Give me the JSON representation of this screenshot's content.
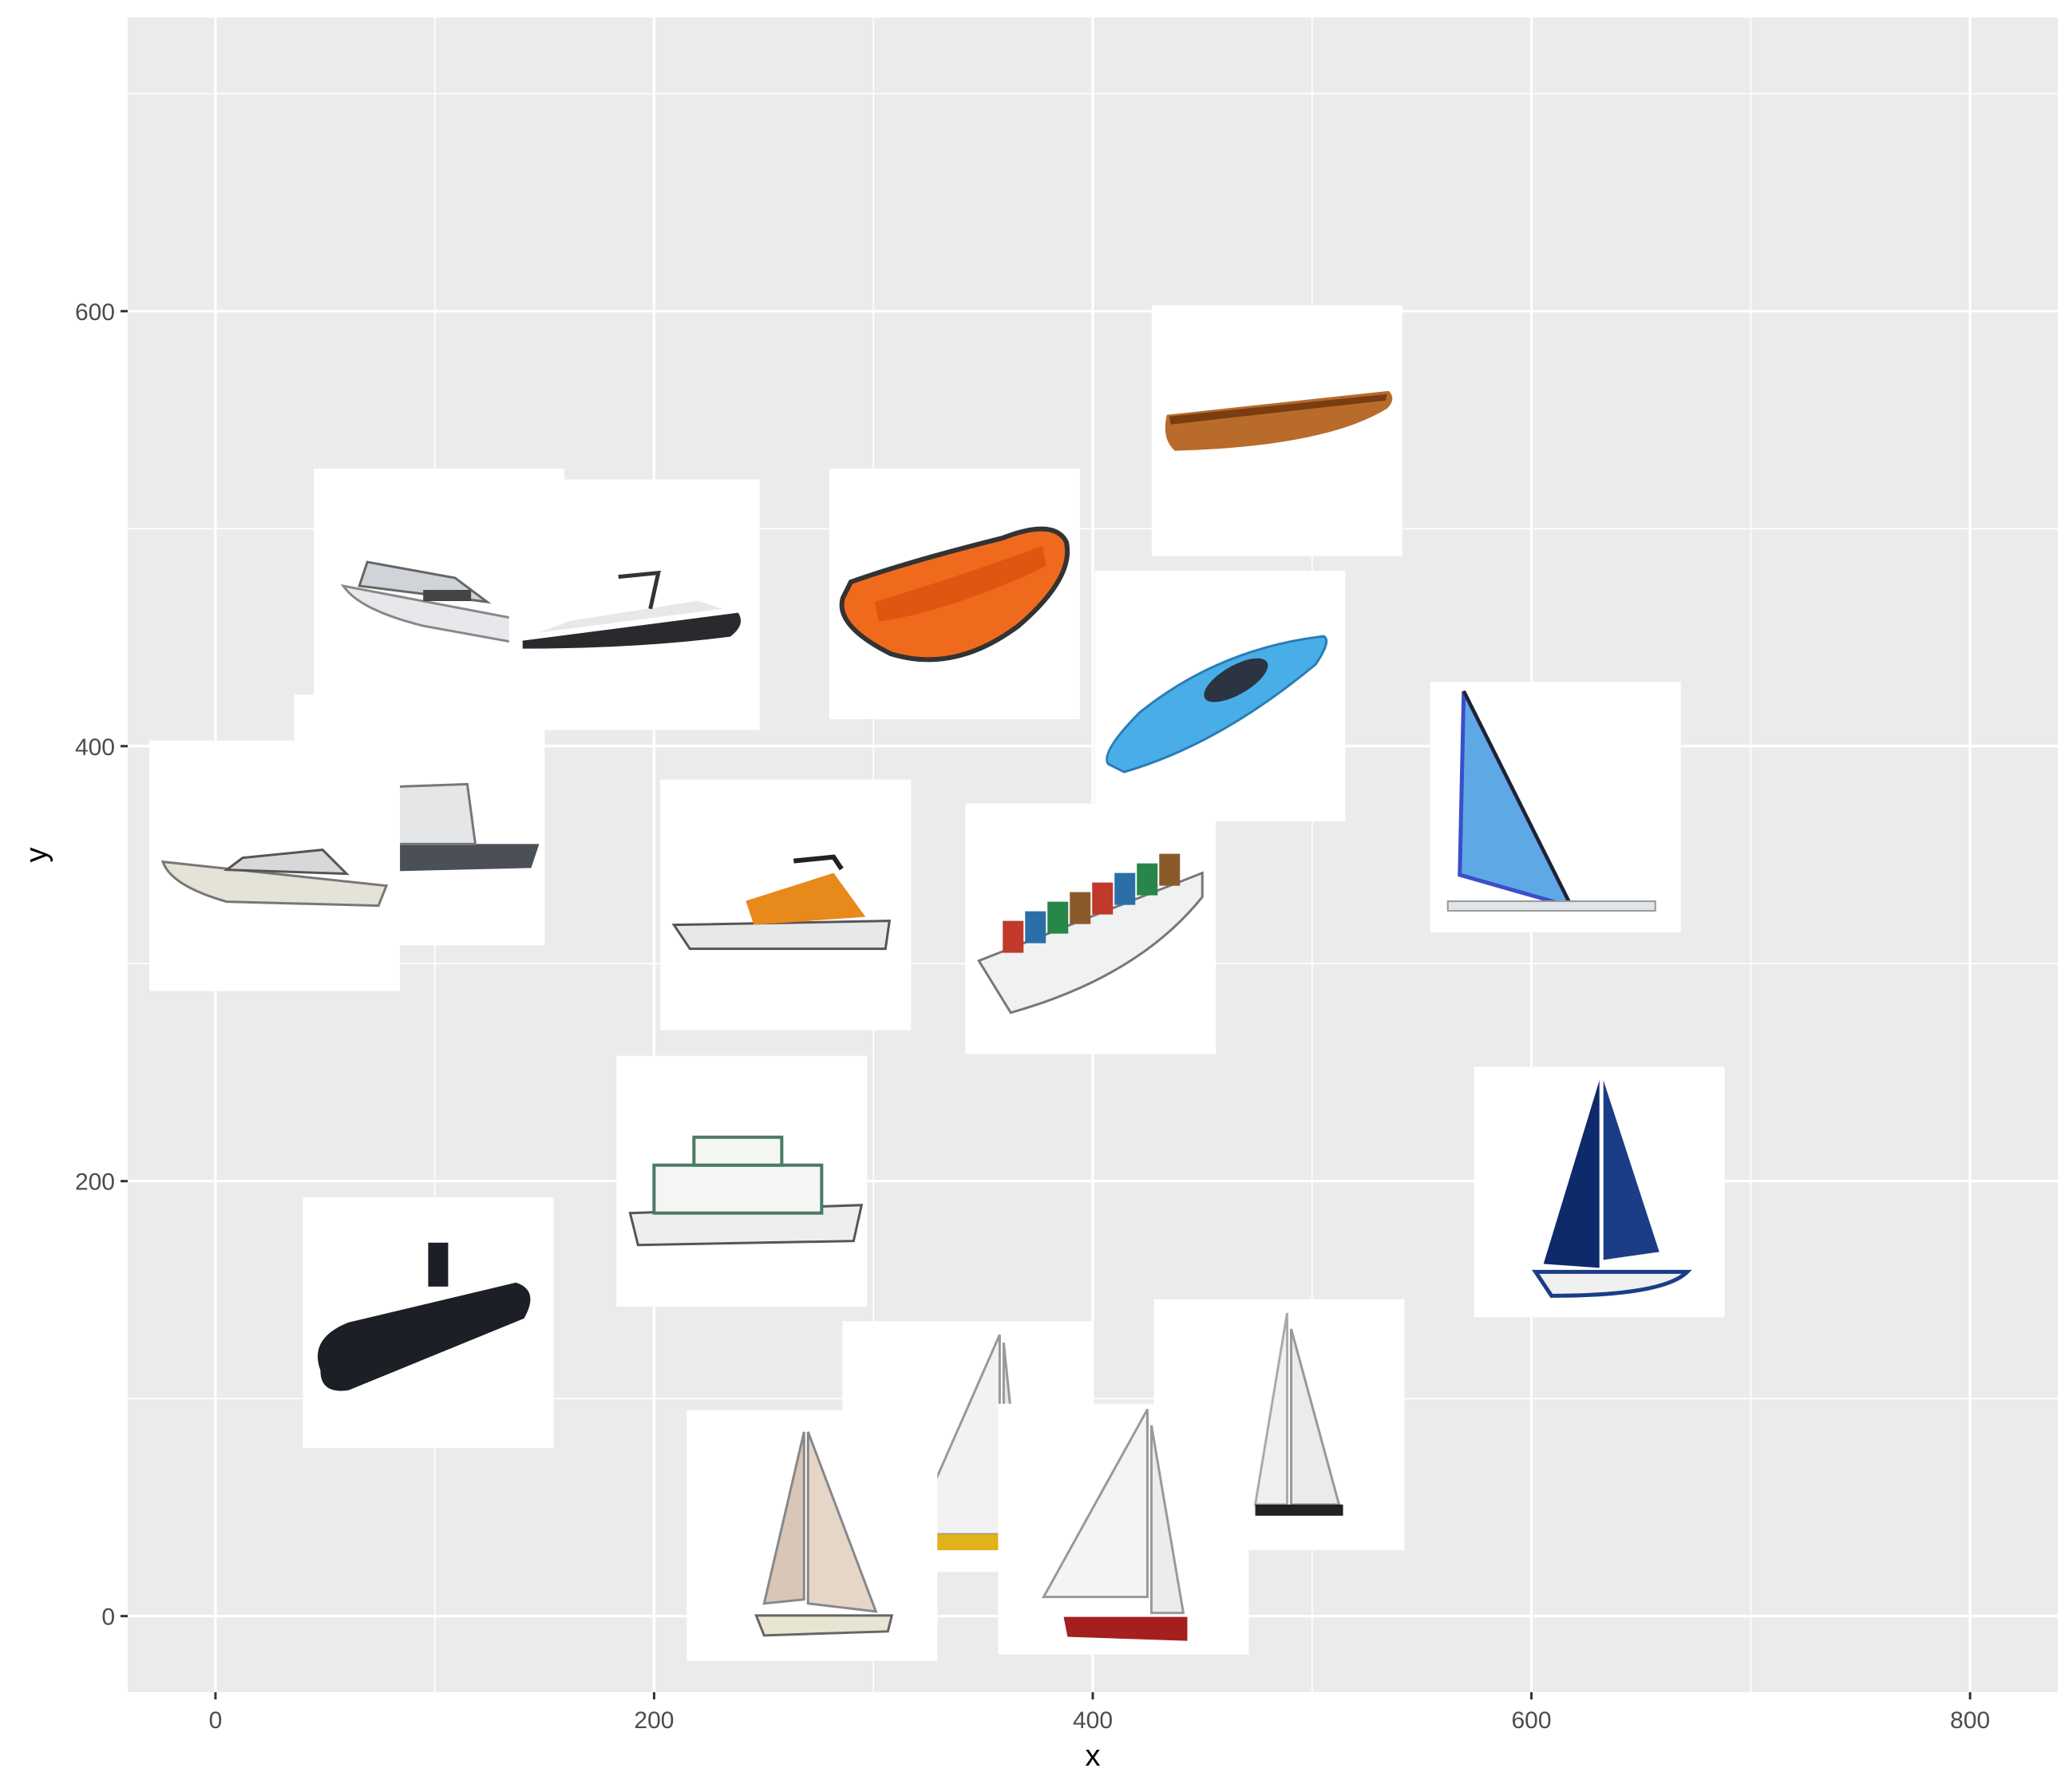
{
  "chart_data": {
    "type": "scatter",
    "title": "",
    "xlabel": "x",
    "ylabel": "y",
    "xlim": [
      -40,
      840
    ],
    "ylim": [
      -35,
      735
    ],
    "x_ticks": [
      0,
      200,
      400,
      600,
      800
    ],
    "y_ticks": [
      0,
      200,
      400,
      600
    ],
    "grid": true,
    "legend": "none",
    "colors": {
      "panel": "#ebebeb",
      "grid": "#ffffff",
      "tile": "#ffffff",
      "tick_text": "#4d4d4d"
    },
    "points": [
      {
        "x": 484,
        "y": 545,
        "icon": "rowboat-icon"
      },
      {
        "x": 337,
        "y": 470,
        "icon": "raft-icon"
      },
      {
        "x": 102,
        "y": 470,
        "icon": "yacht-icon"
      },
      {
        "x": 191,
        "y": 465,
        "icon": "speedboat-icon"
      },
      {
        "x": 458,
        "y": 423,
        "icon": "kayak-icon"
      },
      {
        "x": 93,
        "y": 366,
        "icon": "fishing-boat-icon"
      },
      {
        "x": 27,
        "y": 345,
        "icon": "cruiser-icon"
      },
      {
        "x": 611,
        "y": 372,
        "icon": "windsurf-icon"
      },
      {
        "x": 260,
        "y": 327,
        "icon": "jetski-icon"
      },
      {
        "x": 399,
        "y": 316,
        "icon": "cargo-ship-icon"
      },
      {
        "x": 240,
        "y": 200,
        "icon": "ferry-icon"
      },
      {
        "x": 631,
        "y": 195,
        "icon": "sailboat-blue-icon"
      },
      {
        "x": 97,
        "y": 135,
        "icon": "submarine-icon"
      },
      {
        "x": 343,
        "y": 78,
        "icon": "sailboat-white-icon"
      },
      {
        "x": 485,
        "y": 88,
        "icon": "sailboat-racing-icon"
      },
      {
        "x": 272,
        "y": 37,
        "icon": "sailboat-beige-icon"
      },
      {
        "x": 414,
        "y": 40,
        "icon": "dinghy-icon"
      }
    ]
  }
}
